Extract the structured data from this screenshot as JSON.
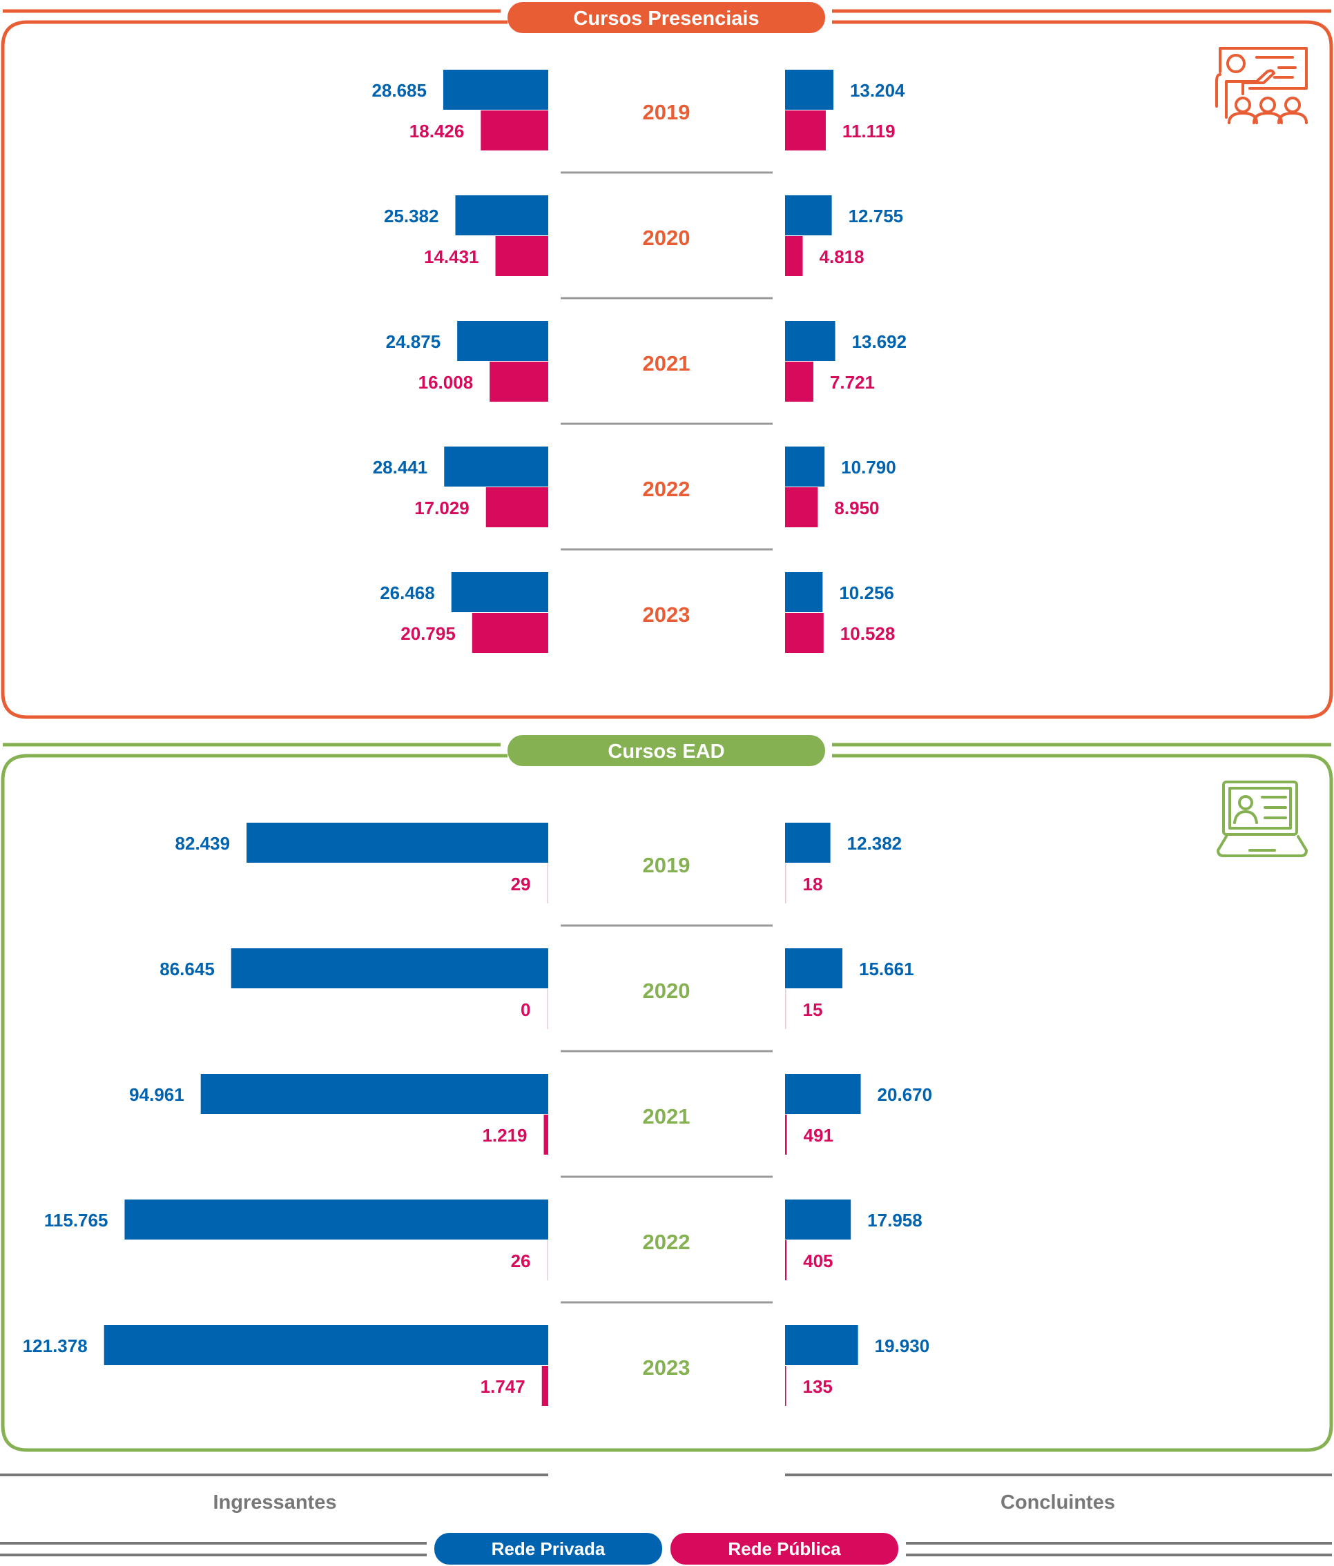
{
  "colors": {
    "presencial": "#e95d35",
    "ead": "#86b153",
    "privada": "#0063b0",
    "publica": "#d70a5c",
    "gray": "#777777"
  },
  "chart_data": [
    {
      "type": "bar",
      "title": "Cursos Presenciais",
      "icon": "classroom-presentation-icon",
      "categories": [
        "2019",
        "2020",
        "2021",
        "2022",
        "2023"
      ],
      "groups": [
        "Ingressantes",
        "Concluintes"
      ],
      "series": [
        {
          "name": "Rede Privada",
          "ingressantes": [
            28685,
            25382,
            24875,
            28441,
            26468
          ],
          "concluintes": [
            13204,
            12755,
            13692,
            10790,
            10256
          ],
          "ingressantes_labels": [
            "28.685",
            "25.382",
            "24.875",
            "28.441",
            "26.468"
          ],
          "concluintes_labels": [
            "13.204",
            "12.755",
            "13.692",
            "10.790",
            "10.256"
          ]
        },
        {
          "name": "Rede Pública",
          "ingressantes": [
            18426,
            14431,
            16008,
            17029,
            20795
          ],
          "concluintes": [
            11119,
            4818,
            7721,
            8950,
            10528
          ],
          "ingressantes_labels": [
            "18.426",
            "14.431",
            "16.008",
            "17.029",
            "20.795"
          ],
          "concluintes_labels": [
            "11.119",
            "4.818",
            "7.721",
            "8.950",
            "10.528"
          ]
        }
      ]
    },
    {
      "type": "bar",
      "title": "Cursos EAD",
      "icon": "laptop-online-class-icon",
      "categories": [
        "2019",
        "2020",
        "2021",
        "2022",
        "2023"
      ],
      "groups": [
        "Ingressantes",
        "Concluintes"
      ],
      "series": [
        {
          "name": "Rede Privada",
          "ingressantes": [
            82439,
            86645,
            94961,
            115765,
            121378
          ],
          "concluintes": [
            12382,
            15661,
            20670,
            17958,
            19930
          ],
          "ingressantes_labels": [
            "82.439",
            "86.645",
            "94.961",
            "115.765",
            "121.378"
          ],
          "concluintes_labels": [
            "12.382",
            "15.661",
            "20.670",
            "17.958",
            "19.930"
          ]
        },
        {
          "name": "Rede Pública",
          "ingressantes": [
            29,
            0,
            1219,
            26,
            1747
          ],
          "concluintes": [
            18,
            15,
            491,
            405,
            135
          ],
          "ingressantes_labels": [
            "29",
            "0",
            "1.219",
            "26",
            "1.747"
          ],
          "concluintes_labels": [
            "18",
            "15",
            "491",
            "405",
            "135"
          ]
        }
      ]
    }
  ],
  "axis": {
    "left": "Ingressantes",
    "right": "Concluintes"
  },
  "legend": {
    "privada": "Rede Privada",
    "publica": "Rede Pública"
  }
}
